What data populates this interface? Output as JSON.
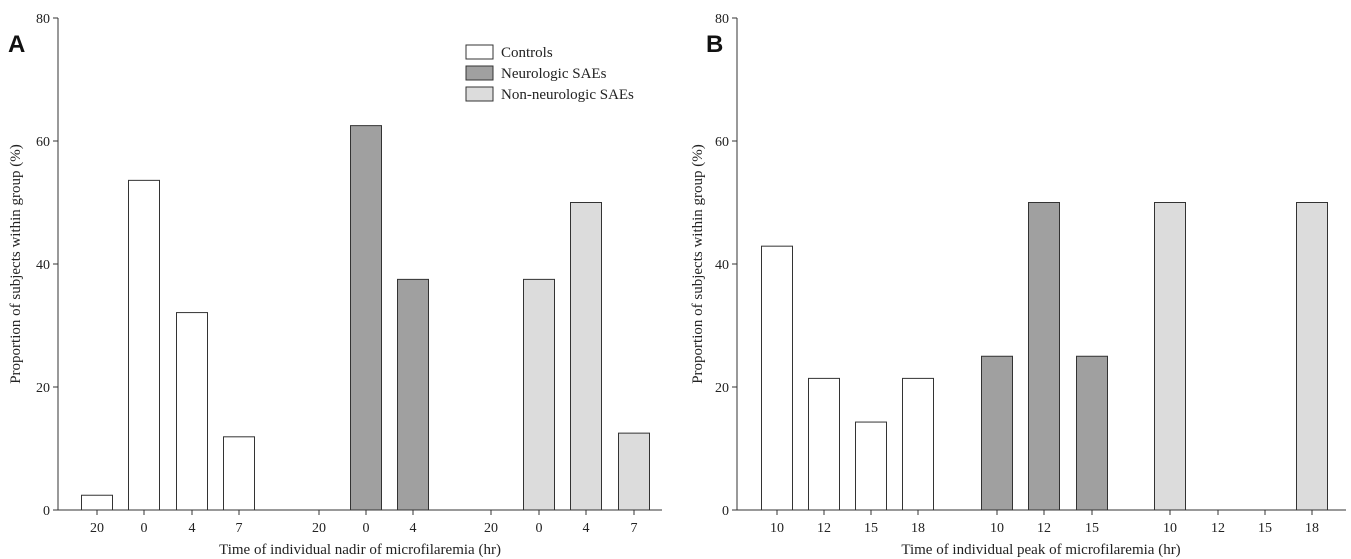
{
  "colors": {
    "Controls": "#ffffff",
    "Neurologic SAEs": "#a0a0a0",
    "Non-neurologic SAEs": "#dcdcdc",
    "stroke": "#333333"
  },
  "chart_data": [
    {
      "type": "bar",
      "panel": "A",
      "xlabel": "Time of individual nadir of microfilaremia (hr)",
      "ylabel": "Proportion of subjects within group (%)",
      "ylim": [
        0,
        80
      ],
      "yticks": [
        0,
        20,
        40,
        60,
        80
      ],
      "legend": {
        "position": "top-right",
        "entries": [
          "Controls",
          "Neurologic SAEs",
          "Non-neurologic SAEs"
        ]
      },
      "groups": [
        {
          "series": "Controls",
          "bars": [
            {
              "category": "20",
              "value": 2.4
            },
            {
              "category": "0",
              "value": 53.6
            },
            {
              "category": "4",
              "value": 32.1
            },
            {
              "category": "7",
              "value": 11.9
            }
          ]
        },
        {
          "series": "Neurologic SAEs",
          "bars": [
            {
              "category": "20",
              "value": 0
            },
            {
              "category": "0",
              "value": 62.5
            },
            {
              "category": "4",
              "value": 37.5
            }
          ]
        },
        {
          "series": "Non-neurologic SAEs",
          "bars": [
            {
              "category": "20",
              "value": 0
            },
            {
              "category": "0",
              "value": 37.5
            },
            {
              "category": "4",
              "value": 50.0
            },
            {
              "category": "7",
              "value": 12.5
            }
          ]
        }
      ]
    },
    {
      "type": "bar",
      "panel": "B",
      "xlabel": "Time of individual peak of microfilaremia (hr)",
      "ylabel": "Proportion of subjects within group (%)",
      "ylim": [
        0,
        80
      ],
      "yticks": [
        0,
        20,
        40,
        60,
        80
      ],
      "groups": [
        {
          "series": "Controls",
          "bars": [
            {
              "category": "10",
              "value": 42.9
            },
            {
              "category": "12",
              "value": 21.4
            },
            {
              "category": "15",
              "value": 14.3
            },
            {
              "category": "18",
              "value": 21.4
            }
          ]
        },
        {
          "series": "Neurologic SAEs",
          "bars": [
            {
              "category": "10",
              "value": 25.0
            },
            {
              "category": "12",
              "value": 50.0
            },
            {
              "category": "15",
              "value": 25.0
            }
          ]
        },
        {
          "series": "Non-neurologic SAEs",
          "bars": [
            {
              "category": "10",
              "value": 50.0
            },
            {
              "category": "12",
              "value": 0
            },
            {
              "category": "15",
              "value": 0
            },
            {
              "category": "18",
              "value": 50.0
            }
          ]
        }
      ]
    }
  ]
}
